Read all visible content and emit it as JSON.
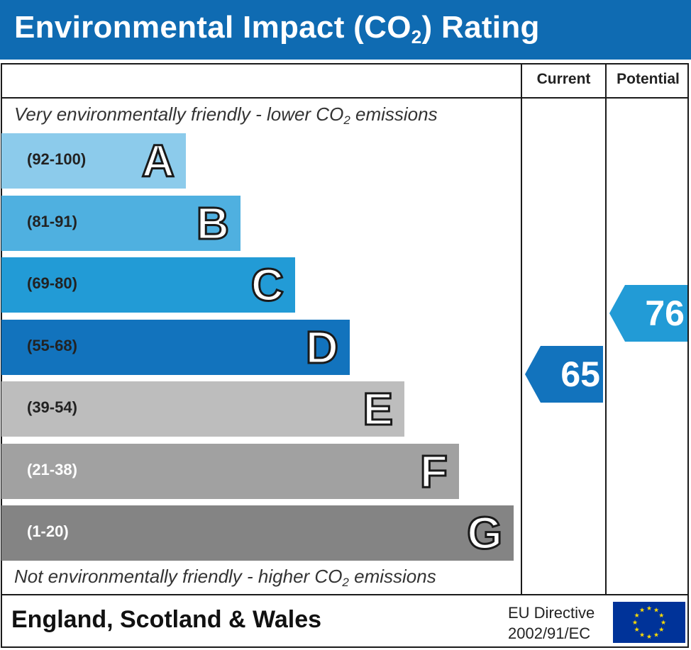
{
  "header": {
    "title_main": "Environmental Impact (CO",
    "title_sub": "2",
    "title_end": ") Rating"
  },
  "columns": {
    "current": "Current",
    "potential": "Potential"
  },
  "notes": {
    "top_a": "Very environmentally friendly - lower CO",
    "top_sub": "2",
    "top_b": " emissions",
    "bottom_a": "Not environmentally friendly - higher CO",
    "bottom_sub": "2",
    "bottom_b": " emissions"
  },
  "footer": {
    "region": "England, Scotland & Wales",
    "directive_line1": "EU Directive",
    "directive_line2": "2002/91/EC"
  },
  "chart_data": {
    "type": "bar",
    "categories": [
      "A",
      "B",
      "C",
      "D",
      "E",
      "F",
      "G"
    ],
    "bands": [
      {
        "letter": "A",
        "range": "(92-100)",
        "min": 92,
        "max": 100,
        "color": "#8ccbeb",
        "text_color": "#222222"
      },
      {
        "letter": "B",
        "range": "(81-91)",
        "min": 81,
        "max": 91,
        "color": "#4fb0e0",
        "text_color": "#222222"
      },
      {
        "letter": "C",
        "range": "(69-80)",
        "min": 69,
        "max": 80,
        "color": "#229bd6",
        "text_color": "#222222"
      },
      {
        "letter": "D",
        "range": "(55-68)",
        "min": 55,
        "max": 68,
        "color": "#1273bd",
        "text_color": "#222222"
      },
      {
        "letter": "E",
        "range": "(39-54)",
        "min": 39,
        "max": 54,
        "color": "#bdbdbd",
        "text_color": "#222222"
      },
      {
        "letter": "F",
        "range": "(21-38)",
        "min": 21,
        "max": 38,
        "color": "#a1a1a1",
        "text_color": "#ffffff"
      },
      {
        "letter": "G",
        "range": "(1-20)",
        "min": 1,
        "max": 20,
        "color": "#848484",
        "text_color": "#ffffff"
      }
    ],
    "current": {
      "value": 65,
      "band": "D",
      "color": "#1273bd"
    },
    "potential": {
      "value": 76,
      "band": "C",
      "color": "#229bd6"
    }
  }
}
